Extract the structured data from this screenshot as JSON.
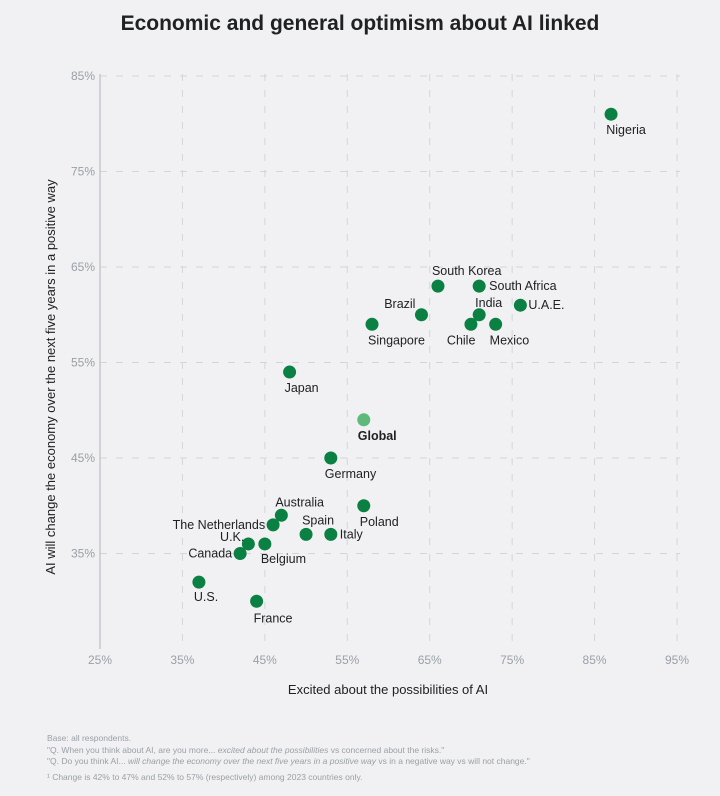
{
  "chart_data": {
    "type": "scatter",
    "title": "Economic and general optimism about AI linked",
    "xlabel": "Excited about the possibilities of AI",
    "ylabel": "AI will change the economy over the next five years in a positive way",
    "xlim": [
      25,
      95
    ],
    "ylim": [
      25,
      85
    ],
    "x_ticks": [
      "25%",
      "35%",
      "45%",
      "55%",
      "65%",
      "75%",
      "85%",
      "95%"
    ],
    "y_ticks": [
      "85%",
      "75%",
      "65%",
      "55%",
      "45%",
      "35%",
      "25%"
    ],
    "grid": true,
    "colors": {
      "country": "#0b8043",
      "global": "#5fb97d"
    },
    "points": [
      {
        "label": "Nigeria",
        "x": 87,
        "y": 81
      },
      {
        "label": "South Korea",
        "x": 66,
        "y": 63
      },
      {
        "label": "South Africa",
        "x": 71,
        "y": 63
      },
      {
        "label": "U.A.E.",
        "x": 76,
        "y": 61
      },
      {
        "label": "Brazil",
        "x": 64,
        "y": 60
      },
      {
        "label": "India",
        "x": 71,
        "y": 60
      },
      {
        "label": "Chile",
        "x": 70,
        "y": 59
      },
      {
        "label": "Mexico",
        "x": 73,
        "y": 59
      },
      {
        "label": "Singapore",
        "x": 58,
        "y": 59
      },
      {
        "label": "Japan",
        "x": 48,
        "y": 54
      },
      {
        "label": "Global",
        "x": 57,
        "y": 49,
        "highlight": true
      },
      {
        "label": "Germany",
        "x": 53,
        "y": 45
      },
      {
        "label": "Poland",
        "x": 57,
        "y": 40
      },
      {
        "label": "Australia",
        "x": 47,
        "y": 39
      },
      {
        "label": "The Netherlands",
        "x": 46,
        "y": 38
      },
      {
        "label": "Spain",
        "x": 50,
        "y": 37
      },
      {
        "label": "Italy",
        "x": 53,
        "y": 37
      },
      {
        "label": "U.K.",
        "x": 43,
        "y": 36
      },
      {
        "label": "Belgium",
        "x": 45,
        "y": 36
      },
      {
        "label": "Canada",
        "x": 42,
        "y": 35
      },
      {
        "label": "U.S.",
        "x": 37,
        "y": 32
      },
      {
        "label": "France",
        "x": 44,
        "y": 30
      }
    ]
  },
  "notes": {
    "base": "Base: all respondents.",
    "q1_prefix": "\"Q. When you think about AI, are you more... ",
    "q1_italic": "excited about the possibilities",
    "q1_suffix": " vs concerned about the risks.\"",
    "q2_prefix": "\"Q. Do you think AI... ",
    "q2_italic": "will change the economy over the next five years in a positive way",
    "q2_suffix": " vs in a negative way vs will not change.\"",
    "footnote": "¹ Change is 42% to 47% and 52% to 57% (respectively) among 2023 countries only."
  }
}
